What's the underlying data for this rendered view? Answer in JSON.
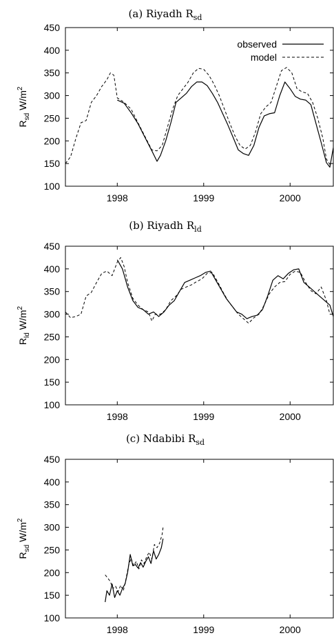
{
  "chart_data": [
    {
      "type": "line",
      "title": "(a)  Riyadh R",
      "title_sub": "sd",
      "ylabel": "R",
      "ylabel_sub": "sd",
      "ylabel_unit": "W/m",
      "ylabel_sup": "2",
      "xlim": [
        1997.4,
        2000.5
      ],
      "ylim": [
        100,
        450
      ],
      "xticks": [
        1998,
        1999,
        2000
      ],
      "yticks": [
        100,
        150,
        200,
        250,
        300,
        350,
        400,
        450
      ],
      "legend": {
        "placement": "top-right",
        "entries": [
          "observed",
          "model"
        ]
      },
      "series": [
        {
          "name": "observed",
          "x": [
            1998.0,
            1998.08,
            1998.16,
            1998.24,
            1998.32,
            1998.4,
            1998.46,
            1998.5,
            1998.56,
            1998.62,
            1998.68,
            1998.74,
            1998.8,
            1998.86,
            1998.92,
            1998.98,
            1999.04,
            1999.1,
            1999.16,
            1999.22,
            1999.28,
            1999.34,
            1999.4,
            1999.46,
            1999.52,
            1999.58,
            1999.64,
            1999.7,
            1999.76,
            1999.82,
            1999.88,
            1999.94,
            2000.0,
            2000.06,
            2000.12,
            2000.18,
            2000.24,
            2000.3,
            2000.36,
            2000.42,
            2000.46,
            2000.5
          ],
          "y": [
            290,
            283,
            262,
            238,
            208,
            178,
            155,
            168,
            200,
            240,
            285,
            295,
            305,
            320,
            330,
            330,
            322,
            305,
            285,
            260,
            235,
            208,
            180,
            172,
            168,
            190,
            230,
            255,
            260,
            262,
            300,
            330,
            315,
            298,
            292,
            290,
            280,
            238,
            196,
            152,
            142,
            185
          ]
        },
        {
          "name": "model",
          "x": [
            1997.4,
            1997.46,
            1997.52,
            1997.58,
            1997.64,
            1997.7,
            1997.76,
            1997.82,
            1997.88,
            1997.92,
            1997.96,
            1998.0,
            1998.08,
            1998.16,
            1998.24,
            1998.32,
            1998.4,
            1998.46,
            1998.52,
            1998.58,
            1998.64,
            1998.7,
            1998.76,
            1998.82,
            1998.88,
            1998.94,
            1999.0,
            1999.06,
            1999.12,
            1999.18,
            1999.24,
            1999.3,
            1999.36,
            1999.42,
            1999.48,
            1999.54,
            1999.6,
            1999.66,
            1999.72,
            1999.78,
            1999.84,
            1999.9,
            1999.96,
            2000.02,
            2000.08,
            2000.14,
            2000.2,
            2000.26,
            2000.32,
            2000.38,
            2000.42,
            2000.46
          ],
          "y": [
            150,
            165,
            205,
            240,
            245,
            285,
            300,
            320,
            335,
            350,
            345,
            295,
            285,
            270,
            240,
            210,
            180,
            178,
            190,
            230,
            270,
            300,
            315,
            330,
            350,
            360,
            358,
            345,
            325,
            300,
            270,
            240,
            212,
            190,
            182,
            190,
            220,
            260,
            275,
            285,
            320,
            355,
            362,
            350,
            315,
            308,
            305,
            285,
            250,
            205,
            160,
            148
          ]
        }
      ]
    },
    {
      "type": "line",
      "title": "(b)  Riyadh R",
      "title_sub": "ld",
      "ylabel": "R",
      "ylabel_sub": "ld",
      "ylabel_unit": "W/m",
      "ylabel_sup": "2",
      "xlim": [
        1997.4,
        2000.5
      ],
      "ylim": [
        100,
        450
      ],
      "xticks": [
        1998,
        1999,
        2000
      ],
      "yticks": [
        100,
        150,
        200,
        250,
        300,
        350,
        400,
        450
      ],
      "series": [
        {
          "name": "observed",
          "x": [
            1998.0,
            1998.06,
            1998.12,
            1998.18,
            1998.24,
            1998.3,
            1998.36,
            1998.42,
            1998.48,
            1998.54,
            1998.6,
            1998.66,
            1998.72,
            1998.78,
            1998.84,
            1998.9,
            1998.96,
            1999.02,
            1999.08,
            1999.14,
            1999.2,
            1999.26,
            1999.32,
            1999.38,
            1999.44,
            1999.5,
            1999.56,
            1999.62,
            1999.68,
            1999.74,
            1999.8,
            1999.86,
            1999.92,
            1999.98,
            2000.04,
            2000.1,
            2000.16,
            2000.22,
            2000.28,
            2000.34,
            2000.4,
            2000.46,
            2000.5
          ],
          "y": [
            420,
            400,
            360,
            330,
            315,
            310,
            300,
            305,
            295,
            305,
            320,
            330,
            350,
            370,
            375,
            380,
            385,
            392,
            395,
            375,
            355,
            335,
            320,
            305,
            300,
            290,
            295,
            298,
            310,
            340,
            375,
            385,
            378,
            390,
            398,
            400,
            370,
            360,
            350,
            340,
            330,
            320,
            295
          ]
        },
        {
          "name": "model",
          "x": [
            1997.4,
            1997.46,
            1997.52,
            1997.58,
            1997.64,
            1997.7,
            1997.76,
            1997.82,
            1997.88,
            1997.94,
            1998.0,
            1998.04,
            1998.08,
            1998.12,
            1998.18,
            1998.24,
            1998.3,
            1998.36,
            1998.4,
            1998.44,
            1998.5,
            1998.56,
            1998.62,
            1998.68,
            1998.74,
            1998.8,
            1998.86,
            1998.92,
            1998.98,
            1999.04,
            1999.1,
            1999.16,
            1999.22,
            1999.28,
            1999.34,
            1999.4,
            1999.46,
            1999.52,
            1999.58,
            1999.64,
            1999.7,
            1999.76,
            1999.82,
            1999.88,
            1999.94,
            2000.0,
            2000.06,
            2000.12,
            2000.18,
            2000.24,
            2000.3,
            2000.36,
            2000.42,
            2000.46
          ],
          "y": [
            305,
            292,
            295,
            300,
            340,
            348,
            370,
            390,
            395,
            385,
            415,
            425,
            405,
            370,
            335,
            320,
            310,
            305,
            285,
            300,
            300,
            310,
            330,
            340,
            355,
            360,
            365,
            372,
            378,
            390,
            392,
            372,
            350,
            330,
            315,
            300,
            290,
            280,
            292,
            300,
            320,
            345,
            360,
            370,
            372,
            388,
            395,
            392,
            370,
            352,
            345,
            360,
            330,
            300
          ]
        }
      ]
    },
    {
      "type": "line",
      "title": "(c)  Ndabibi R",
      "title_sub": "sd",
      "ylabel": "R",
      "ylabel_sub": "sd",
      "ylabel_unit": "W/m",
      "ylabel_sup": "2",
      "xlim": [
        1997.4,
        2000.5
      ],
      "ylim": [
        100,
        450
      ],
      "xticks": [
        1998,
        1999,
        2000
      ],
      "yticks": [
        100,
        150,
        200,
        250,
        300,
        350,
        400,
        450
      ],
      "series": [
        {
          "name": "observed",
          "x": [
            1997.86,
            1997.88,
            1997.91,
            1997.94,
            1997.97,
            1998.0,
            1998.03,
            1998.06,
            1998.09,
            1998.12,
            1998.15,
            1998.18,
            1998.21,
            1998.24,
            1998.27,
            1998.3,
            1998.33,
            1998.36,
            1998.39,
            1998.42,
            1998.45,
            1998.48,
            1998.51,
            1998.53
          ],
          "y": [
            135,
            160,
            150,
            175,
            145,
            160,
            150,
            165,
            175,
            200,
            240,
            215,
            218,
            210,
            222,
            212,
            225,
            235,
            220,
            248,
            230,
            240,
            255,
            275
          ]
        },
        {
          "name": "model",
          "x": [
            1997.86,
            1997.89,
            1997.92,
            1997.95,
            1997.98,
            1998.01,
            1998.04,
            1998.07,
            1998.1,
            1998.13,
            1998.16,
            1998.19,
            1998.22,
            1998.25,
            1998.28,
            1998.31,
            1998.34,
            1998.37,
            1998.4,
            1998.43,
            1998.46,
            1998.49,
            1998.52,
            1998.53
          ],
          "y": [
            195,
            188,
            180,
            165,
            170,
            158,
            172,
            160,
            185,
            215,
            232,
            215,
            225,
            208,
            228,
            220,
            235,
            245,
            230,
            262,
            255,
            265,
            285,
            300
          ]
        }
      ]
    }
  ]
}
